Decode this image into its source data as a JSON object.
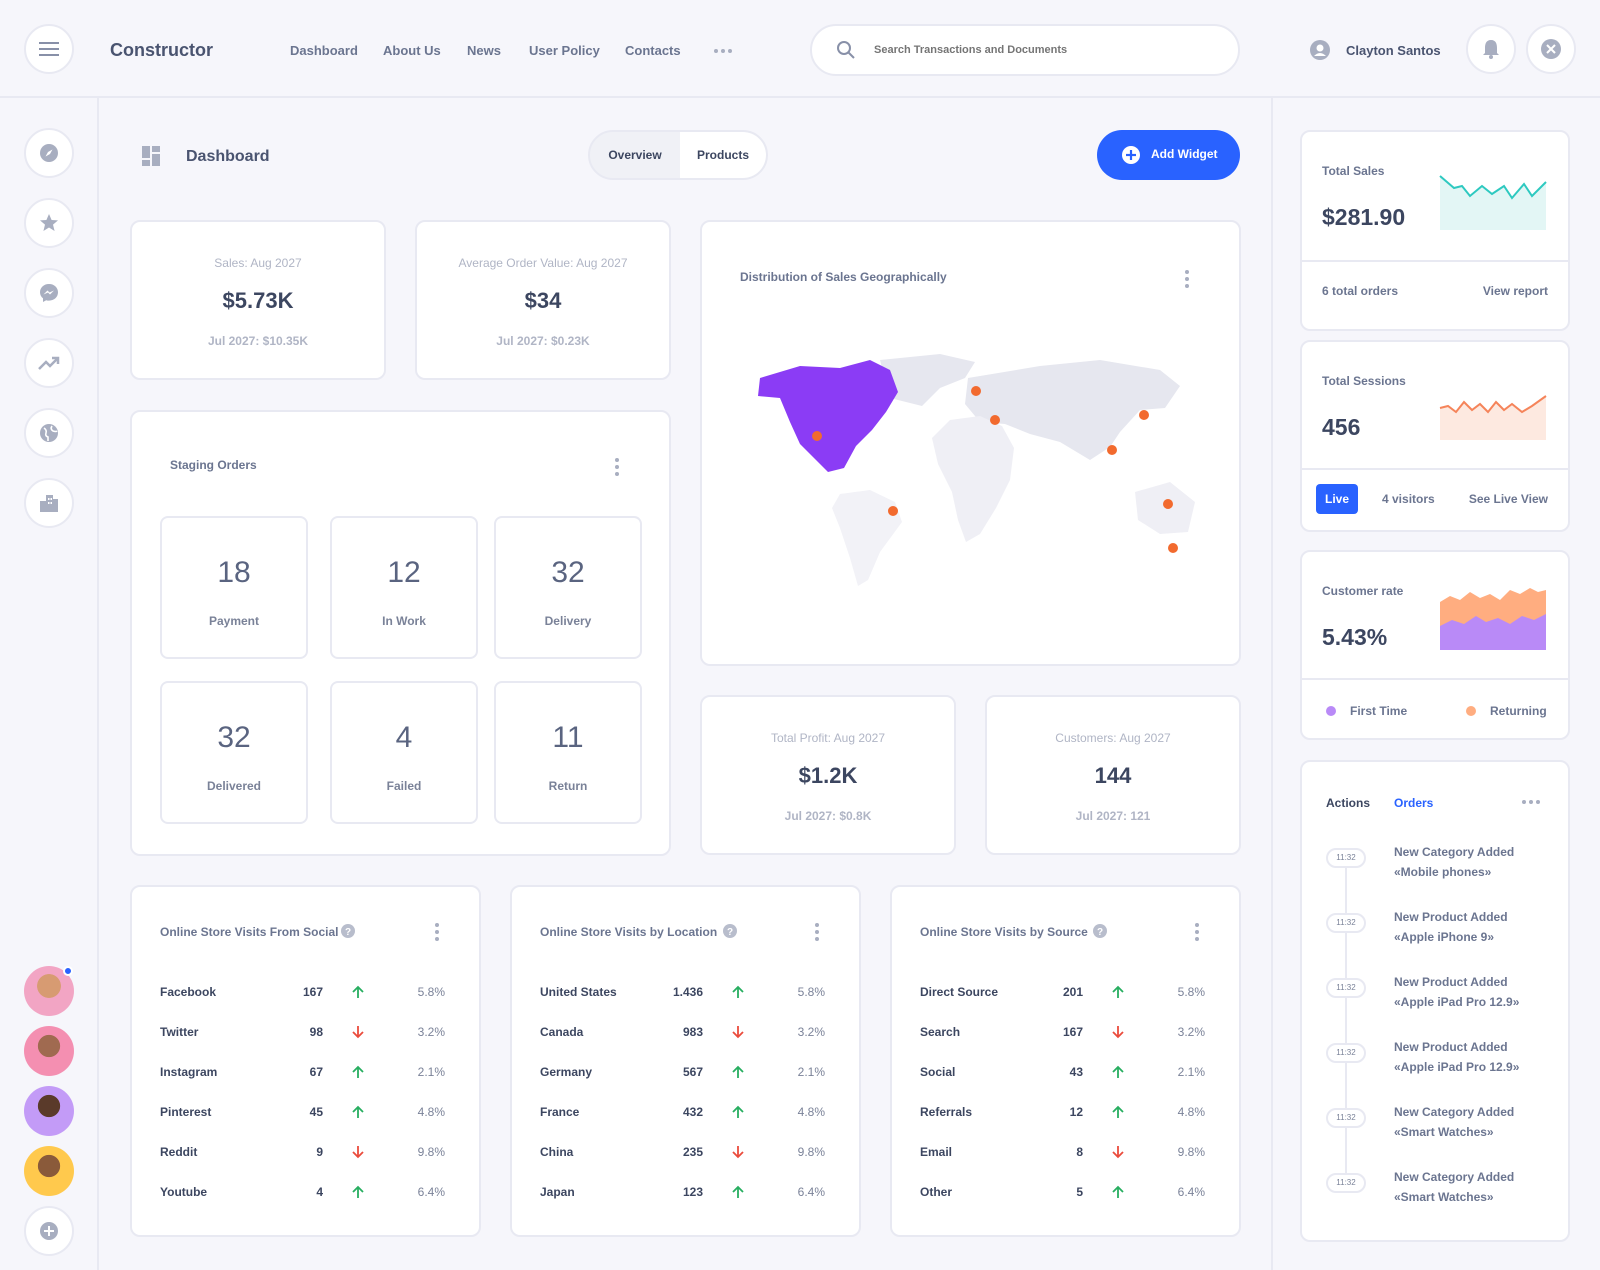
{
  "app": {
    "title": "Constructor"
  },
  "nav": {
    "items": [
      "Dashboard",
      "About Us",
      "News",
      "User Policy",
      "Contacts"
    ]
  },
  "search": {
    "placeholder": "Search Transactions and Documents"
  },
  "user": {
    "name": "Clayton Santos"
  },
  "page": {
    "title": "Dashboard",
    "tabs": [
      "Overview",
      "Products"
    ],
    "add_widget": "Add Widget"
  },
  "kpis": [
    {
      "title": "Sales: Aug 2027",
      "value": "$5.73K",
      "sub": "Jul 2027: $10.35K"
    },
    {
      "title": "Average Order Value: Aug 2027",
      "value": "$34",
      "sub": "Jul 2027: $0.23K"
    },
    {
      "title": "Total Profit: Aug 2027",
      "value": "$1.2K",
      "sub": "Jul 2027: $0.8K"
    },
    {
      "title": "Customers: Aug 2027",
      "value": "144",
      "sub": "Jul 2027: 121"
    }
  ],
  "staging": {
    "title": "Staging Orders",
    "tiles": [
      {
        "n": "18",
        "t": "Payment"
      },
      {
        "n": "12",
        "t": "In Work"
      },
      {
        "n": "32",
        "t": "Delivery"
      },
      {
        "n": "32",
        "t": "Delivered"
      },
      {
        "n": "4",
        "t": "Failed"
      },
      {
        "n": "11",
        "t": "Return"
      }
    ]
  },
  "map": {
    "title": "Distribution of Sales Geographically",
    "highlight_color": "#8b3cf5",
    "pin_color": "#f26a2e"
  },
  "tables": [
    {
      "title": "Online Store Visits From Social",
      "rows": [
        {
          "name": "Facebook",
          "value": "167",
          "dir": "up",
          "pct": "5.8%"
        },
        {
          "name": "Twitter",
          "value": "98",
          "dir": "down",
          "pct": "3.2%"
        },
        {
          "name": "Instagram",
          "value": "67",
          "dir": "up",
          "pct": "2.1%"
        },
        {
          "name": "Pinterest",
          "value": "45",
          "dir": "up",
          "pct": "4.8%"
        },
        {
          "name": "Reddit",
          "value": "9",
          "dir": "down",
          "pct": "9.8%"
        },
        {
          "name": "Youtube",
          "value": "4",
          "dir": "up",
          "pct": "6.4%"
        }
      ]
    },
    {
      "title": "Online Store Visits by Location",
      "rows": [
        {
          "name": "United States",
          "value": "1.436",
          "dir": "up",
          "pct": "5.8%"
        },
        {
          "name": "Canada",
          "value": "983",
          "dir": "down",
          "pct": "3.2%"
        },
        {
          "name": "Germany",
          "value": "567",
          "dir": "up",
          "pct": "2.1%"
        },
        {
          "name": "France",
          "value": "432",
          "dir": "up",
          "pct": "4.8%"
        },
        {
          "name": "China",
          "value": "235",
          "dir": "down",
          "pct": "9.8%"
        },
        {
          "name": "Japan",
          "value": "123",
          "dir": "up",
          "pct": "6.4%"
        }
      ]
    },
    {
      "title": "Online Store Visits by Source",
      "rows": [
        {
          "name": "Direct Source",
          "value": "201",
          "dir": "up",
          "pct": "5.8%"
        },
        {
          "name": "Search",
          "value": "167",
          "dir": "down",
          "pct": "3.2%"
        },
        {
          "name": "Social",
          "value": "43",
          "dir": "up",
          "pct": "2.1%"
        },
        {
          "name": "Referrals",
          "value": "12",
          "dir": "up",
          "pct": "4.8%"
        },
        {
          "name": "Email",
          "value": "8",
          "dir": "down",
          "pct": "9.8%"
        },
        {
          "name": "Other",
          "value": "5",
          "dir": "up",
          "pct": "6.4%"
        }
      ]
    }
  ],
  "right": {
    "total_sales": {
      "label": "Total Sales",
      "value": "$281.90",
      "orders": "6 total orders",
      "link": "View report",
      "color": "#2ec9c0"
    },
    "total_sessions": {
      "label": "Total Sessions",
      "value": "456",
      "live": "Live",
      "visitors": "4 visitors",
      "link": "See Live View",
      "color": "#f5845a"
    },
    "customer_rate": {
      "label": "Customer rate",
      "value": "5.43%",
      "legend": [
        "First Time",
        "Returning"
      ],
      "colors": [
        "#b98af7",
        "#ffad80"
      ]
    },
    "feed": {
      "tabs": [
        "Actions",
        "Orders"
      ],
      "items": [
        {
          "time": "11:32",
          "line1": "New Category Added",
          "line2": "«Mobile phones»"
        },
        {
          "time": "11:32",
          "line1": "New Product Added",
          "line2": "«Apple iPhone 9»"
        },
        {
          "time": "11:32",
          "line1": "New Product Added",
          "line2": "«Apple iPad Pro 12.9»"
        },
        {
          "time": "11:32",
          "line1": "New Product Added",
          "line2": "«Apple iPad Pro 12.9»"
        },
        {
          "time": "11:32",
          "line1": "New Category Added",
          "line2": "«Smart Watches»"
        },
        {
          "time": "11:32",
          "line1": "New Category Added",
          "line2": "«Smart Watches»"
        }
      ]
    }
  },
  "colors": {
    "accent": "#2962ff",
    "up": "#27ae60",
    "down": "#eb4b3c"
  }
}
